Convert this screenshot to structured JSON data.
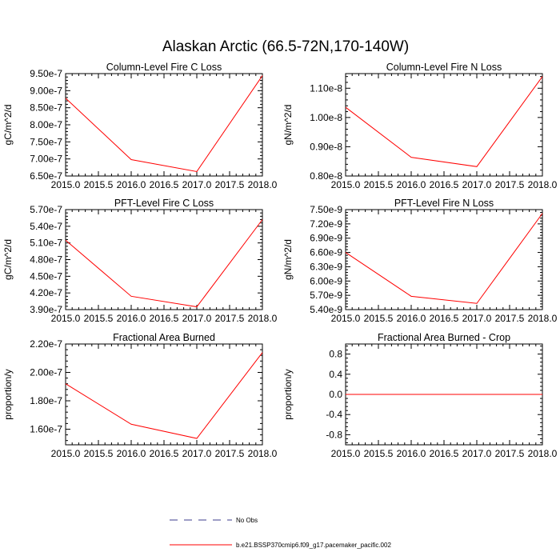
{
  "title": "Alaskan Arctic (66.5-72N,170-140W)",
  "colors": {
    "model": "#ff0000",
    "obs": "#3c3c8c",
    "axis": "#000000"
  },
  "legend": [
    {
      "label": "No Obs",
      "style": "dashed",
      "color": "#3c3c8c"
    },
    {
      "label": "b.e21.BSSP370cmip6.f09_g17.pacemaker_pacific.002",
      "style": "solid",
      "color": "#ff0000"
    }
  ],
  "chart_data": [
    {
      "type": "line",
      "title": "Column-Level Fire C Loss",
      "ylabel": "gC/m^2/d",
      "x": [
        2015.0,
        2016.0,
        2017.0,
        2018.0
      ],
      "xlim": [
        2015.0,
        2018.0
      ],
      "xticks": [
        "2015.0",
        "2015.5",
        "2016.0",
        "2016.5",
        "2017.0",
        "2017.5",
        "2018.0"
      ],
      "ylim": [
        6.5e-07,
        9.5e-07
      ],
      "yticks": [
        {
          "v": 6.5e-07,
          "label": "6.50e-7"
        },
        {
          "v": 7e-07,
          "label": "7.00e-7"
        },
        {
          "v": 7.5e-07,
          "label": "7.50e-7"
        },
        {
          "v": 8e-07,
          "label": "8.00e-7"
        },
        {
          "v": 8.5e-07,
          "label": "8.50e-7"
        },
        {
          "v": 9e-07,
          "label": "9.00e-7"
        },
        {
          "v": 9.5e-07,
          "label": "9.50e-7"
        }
      ],
      "series": [
        {
          "name": "b.e21.BSSP370cmip6.f09_g17.pacemaker_pacific.002",
          "values": [
            8.78e-07,
            6.98e-07,
            6.63e-07,
            9.44e-07
          ]
        }
      ]
    },
    {
      "type": "line",
      "title": "Column-Level Fire N Loss",
      "ylabel": "gN/m^2/d",
      "x": [
        2015.0,
        2016.0,
        2017.0,
        2018.0
      ],
      "xlim": [
        2015.0,
        2018.0
      ],
      "xticks": [
        "2015.0",
        "2015.5",
        "2016.0",
        "2016.5",
        "2017.0",
        "2017.5",
        "2018.0"
      ],
      "ylim": [
        8e-09,
        1.15e-08
      ],
      "yticks": [
        {
          "v": 8e-09,
          "label": "0.80e-8"
        },
        {
          "v": 9e-09,
          "label": "0.90e-8"
        },
        {
          "v": 1e-08,
          "label": "1.00e-8"
        },
        {
          "v": 1.1e-08,
          "label": "1.10e-8"
        }
      ],
      "series": [
        {
          "name": "b.e21.BSSP370cmip6.f09_g17.pacemaker_pacific.002",
          "values": [
            1.035e-08,
            8.64e-09,
            8.32e-09,
            1.14e-08
          ]
        }
      ]
    },
    {
      "type": "line",
      "title": "PFT-Level Fire C Loss",
      "ylabel": "gC/m^2/d",
      "x": [
        2015.0,
        2016.0,
        2017.0,
        2018.0
      ],
      "xlim": [
        2015.0,
        2018.0
      ],
      "xticks": [
        "2015.0",
        "2015.5",
        "2016.0",
        "2016.5",
        "2017.0",
        "2017.5",
        "2018.0"
      ],
      "ylim": [
        3.9e-07,
        5.7e-07
      ],
      "yticks": [
        {
          "v": 3.9e-07,
          "label": "3.90e-7"
        },
        {
          "v": 4.2e-07,
          "label": "4.20e-7"
        },
        {
          "v": 4.5e-07,
          "label": "4.50e-7"
        },
        {
          "v": 4.8e-07,
          "label": "4.80e-7"
        },
        {
          "v": 5.1e-07,
          "label": "5.10e-7"
        },
        {
          "v": 5.4e-07,
          "label": "5.40e-7"
        },
        {
          "v": 5.7e-07,
          "label": "5.70e-7"
        }
      ],
      "series": [
        {
          "name": "b.e21.BSSP370cmip6.f09_g17.pacemaker_pacific.002",
          "values": [
            5.15e-07,
            4.14e-07,
            3.95e-07,
            5.52e-07
          ]
        }
      ]
    },
    {
      "type": "line",
      "title": "PFT-Level Fire N Loss",
      "ylabel": "gN/m^2/d",
      "x": [
        2015.0,
        2016.0,
        2017.0,
        2018.0
      ],
      "xlim": [
        2015.0,
        2018.0
      ],
      "xticks": [
        "2015.0",
        "2015.5",
        "2016.0",
        "2016.5",
        "2017.0",
        "2017.5",
        "2018.0"
      ],
      "ylim": [
        5.4e-09,
        7.5e-09
      ],
      "yticks": [
        {
          "v": 5.4e-09,
          "label": "5.40e-9"
        },
        {
          "v": 5.7e-09,
          "label": "5.70e-9"
        },
        {
          "v": 6e-09,
          "label": "6.00e-9"
        },
        {
          "v": 6.3e-09,
          "label": "6.30e-9"
        },
        {
          "v": 6.6e-09,
          "label": "6.60e-9"
        },
        {
          "v": 6.9e-09,
          "label": "6.90e-9"
        },
        {
          "v": 7.2e-09,
          "label": "7.20e-9"
        },
        {
          "v": 7.5e-09,
          "label": "7.50e-9"
        }
      ],
      "series": [
        {
          "name": "b.e21.BSSP370cmip6.f09_g17.pacemaker_pacific.002",
          "values": [
            6.6e-09,
            5.68e-09,
            5.53e-09,
            7.42e-09
          ]
        }
      ]
    },
    {
      "type": "line",
      "title": "Fractional Area Burned",
      "ylabel": "proportion/y",
      "x": [
        2015.0,
        2016.0,
        2017.0,
        2018.0
      ],
      "xlim": [
        2015.0,
        2018.0
      ],
      "xticks": [
        "2015.0",
        "2015.5",
        "2016.0",
        "2016.5",
        "2017.0",
        "2017.5",
        "2018.0"
      ],
      "ylim": [
        1.49e-07,
        2.2e-07
      ],
      "yticks": [
        {
          "v": 1.6e-07,
          "label": "1.60e-7"
        },
        {
          "v": 1.8e-07,
          "label": "1.80e-7"
        },
        {
          "v": 2e-07,
          "label": "2.00e-7"
        },
        {
          "v": 2.2e-07,
          "label": "2.20e-7"
        }
      ],
      "series": [
        {
          "name": "b.e21.BSSP370cmip6.f09_g17.pacemaker_pacific.002",
          "values": [
            1.92e-07,
            1.635e-07,
            1.535e-07,
            2.14e-07
          ]
        }
      ]
    },
    {
      "type": "line",
      "title": "Fractional Area Burned - Crop",
      "ylabel": "proportion/y",
      "x": [
        2015.0,
        2016.0,
        2017.0,
        2018.0
      ],
      "xlim": [
        2015.0,
        2018.0
      ],
      "xticks": [
        "2015.0",
        "2015.5",
        "2016.0",
        "2016.5",
        "2017.0",
        "2017.5",
        "2018.0"
      ],
      "ylim": [
        -1.0,
        1.0
      ],
      "yticks": [
        {
          "v": -0.8,
          "label": "-0.8"
        },
        {
          "v": -0.4,
          "label": "-0.4"
        },
        {
          "v": 0.0,
          "label": "0.0"
        },
        {
          "v": 0.4,
          "label": "0.4"
        },
        {
          "v": 0.8,
          "label": "0.8"
        }
      ],
      "series": [
        {
          "name": "b.e21.BSSP370cmip6.f09_g17.pacemaker_pacific.002",
          "values": [
            0,
            0,
            0,
            0
          ]
        }
      ]
    }
  ]
}
